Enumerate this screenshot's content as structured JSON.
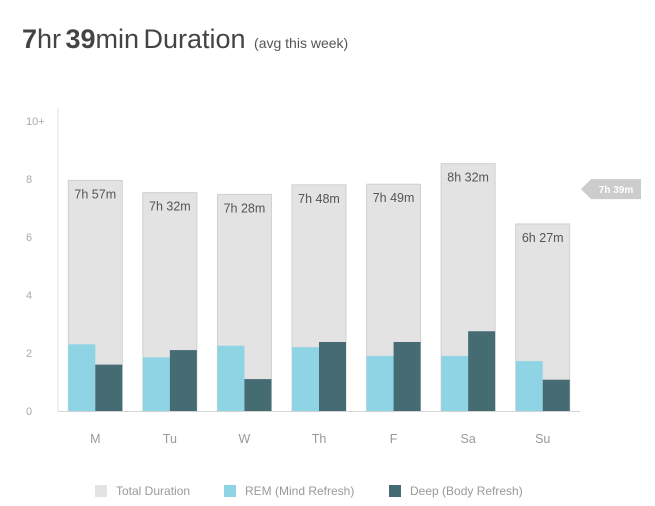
{
  "header": {
    "hours": "7",
    "hr_unit": "hr",
    "minutes": "39",
    "min_unit": "min",
    "title": "Duration",
    "subtitle": "(avg this week)"
  },
  "chart_data": {
    "type": "bar",
    "categories": [
      "M",
      "Tu",
      "W",
      "Th",
      "F",
      "Sa",
      "Su"
    ],
    "series": [
      {
        "name": "Total Duration",
        "values": [
          7.95,
          7.53,
          7.47,
          7.8,
          7.82,
          8.53,
          6.45
        ],
        "labels": [
          "7h 57m",
          "7h 32m",
          "7h 28m",
          "7h 48m",
          "7h 49m",
          "8h 32m",
          "6h 27m"
        ]
      },
      {
        "name": "REM (Mind Refresh)",
        "values": [
          2.3,
          1.85,
          2.25,
          2.2,
          1.9,
          1.9,
          1.72
        ]
      },
      {
        "name": "Deep (Body Refresh)",
        "values": [
          1.6,
          2.1,
          1.1,
          2.38,
          2.38,
          2.75,
          1.08
        ]
      }
    ],
    "yticks": [
      "0",
      "2",
      "4",
      "6",
      "8",
      "10+"
    ],
    "ylim": [
      0,
      10
    ],
    "average": {
      "value": 7.65,
      "label": "7h 39m"
    },
    "colors": {
      "total": "#e3e3e3",
      "total_border": "#d0d0d0",
      "rem": "#8fd4e4",
      "deep": "#456b73",
      "marker": "#cccccc"
    },
    "legend_position": "bottom"
  }
}
